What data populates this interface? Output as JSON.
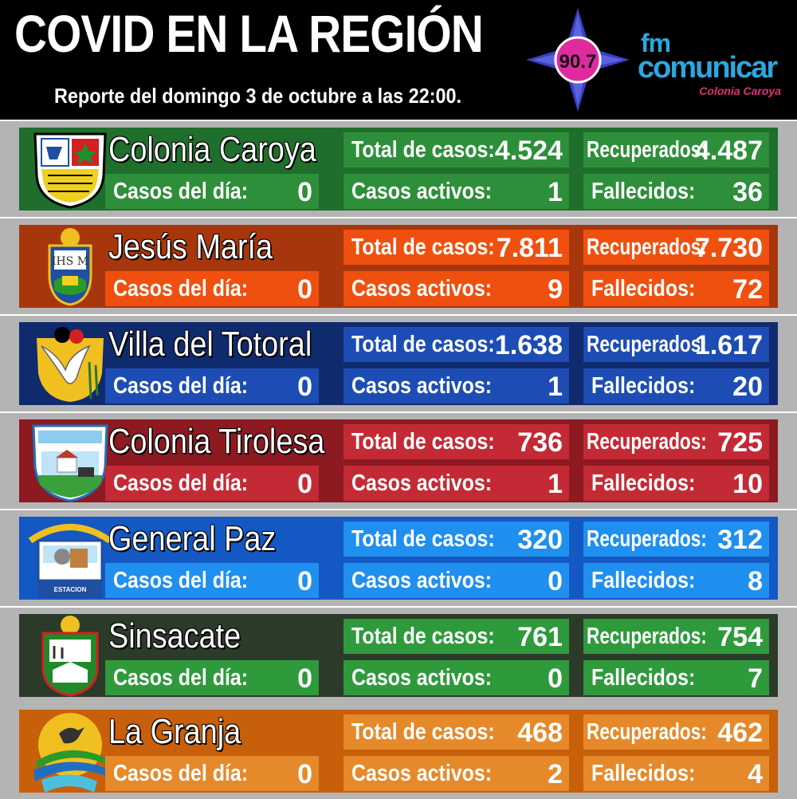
{
  "header": {
    "title": "COVID EN LA REGIÓN",
    "subtitle": "Reporte del domingo 3 de octubre a las 22:00.",
    "frequency": "90.7",
    "brand_fm": "fm",
    "brand_name": "comunicar",
    "brand_place": "Colonia Caroya"
  },
  "labels": {
    "casos_dia": "Casos del día:",
    "total": "Total de casos:",
    "activos": "Casos activos:",
    "recuperados": "Recuperados:",
    "fallecidos": "Fallecidos:"
  },
  "towns": [
    {
      "name": "Colonia Caroya",
      "casos_dia": "0",
      "total": "4.524",
      "activos": "1",
      "recuperados": "4.487",
      "fallecidos": "36",
      "colors": {
        "band": "#1f6e2b",
        "box": "#2e8f3a"
      }
    },
    {
      "name": "Jesús María",
      "casos_dia": "0",
      "total": "7.811",
      "activos": "9",
      "recuperados": "7.730",
      "fallecidos": "72",
      "colors": {
        "band": "#a8360c",
        "box": "#f0500f"
      }
    },
    {
      "name": "Villa del Totoral",
      "casos_dia": "0",
      "total": "1.638",
      "activos": "1",
      "recuperados": "1.617",
      "fallecidos": "20",
      "colors": {
        "band": "#102a6e",
        "box": "#1d4db4"
      }
    },
    {
      "name": "Colonia Tirolesa",
      "casos_dia": "0",
      "total": "736",
      "activos": "1",
      "recuperados": "725",
      "fallecidos": "10",
      "colors": {
        "band": "#8c1a20",
        "box": "#c42a35"
      }
    },
    {
      "name": "General Paz",
      "casos_dia": "0",
      "total": "320",
      "activos": "0",
      "recuperados": "312",
      "fallecidos": "8",
      "colors": {
        "band": "#1458c4",
        "box": "#1f8ff0"
      }
    },
    {
      "name": "Sinsacate",
      "casos_dia": "0",
      "total": "761",
      "activos": "0",
      "recuperados": "754",
      "fallecidos": "7",
      "colors": {
        "band": "#2c3a2a",
        "box": "#2f9a3c"
      }
    },
    {
      "name": "La Granja",
      "casos_dia": "0",
      "total": "468",
      "activos": "2",
      "recuperados": "462",
      "fallecidos": "4",
      "colors": {
        "band": "#c85f0a",
        "box": "#e6892a"
      }
    }
  ]
}
